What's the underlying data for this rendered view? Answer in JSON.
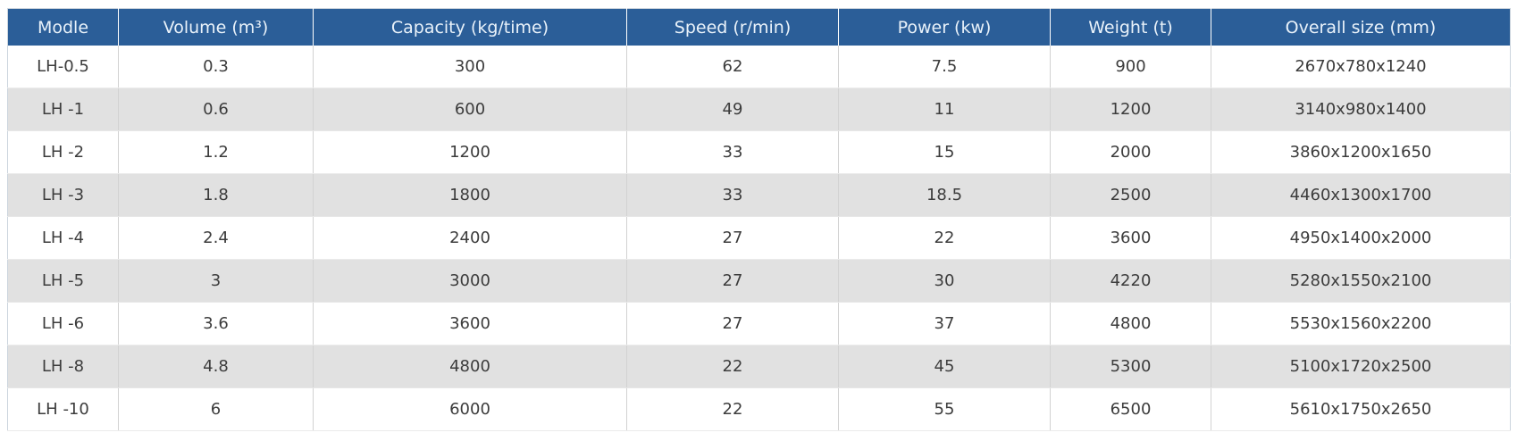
{
  "colors": {
    "header_bg": "#2b5e98",
    "header_text": "#e9f2fa",
    "row_bg": "#ffffff",
    "row_alt_bg": "#e1e1e1",
    "body_text": "#3c3c3c",
    "border": "#d2d2d2",
    "outer_border": "#ccd5de"
  },
  "table": {
    "columns": [
      "Modle",
      "Volume (m³)",
      "Capacity (kg/time)",
      "Speed (r/min)",
      "Power (kw)",
      "Weight (t)",
      "Overall size (mm)"
    ],
    "rows": [
      [
        "LH-0.5",
        "0.3",
        "300",
        "62",
        "7.5",
        "900",
        "2670x780x1240"
      ],
      [
        "LH -1",
        "0.6",
        "600",
        "49",
        "11",
        "1200",
        "3140x980x1400"
      ],
      [
        "LH -2",
        "1.2",
        "1200",
        "33",
        "15",
        "2000",
        "3860x1200x1650"
      ],
      [
        "LH -3",
        "1.8",
        "1800",
        "33",
        "18.5",
        "2500",
        "4460x1300x1700"
      ],
      [
        "LH -4",
        "2.4",
        "2400",
        "27",
        "22",
        "3600",
        "4950x1400x2000"
      ],
      [
        "LH -5",
        "3",
        "3000",
        "27",
        "30",
        "4220",
        "5280x1550x2100"
      ],
      [
        "LH -6",
        "3.6",
        "3600",
        "27",
        "37",
        "4800",
        "5530x1560x2200"
      ],
      [
        "LH -8",
        "4.8",
        "4800",
        "22",
        "45",
        "5300",
        "5100x1720x2500"
      ],
      [
        "LH -10",
        "6",
        "6000",
        "22",
        "55",
        "6500",
        "5610x1750x2650"
      ]
    ]
  }
}
